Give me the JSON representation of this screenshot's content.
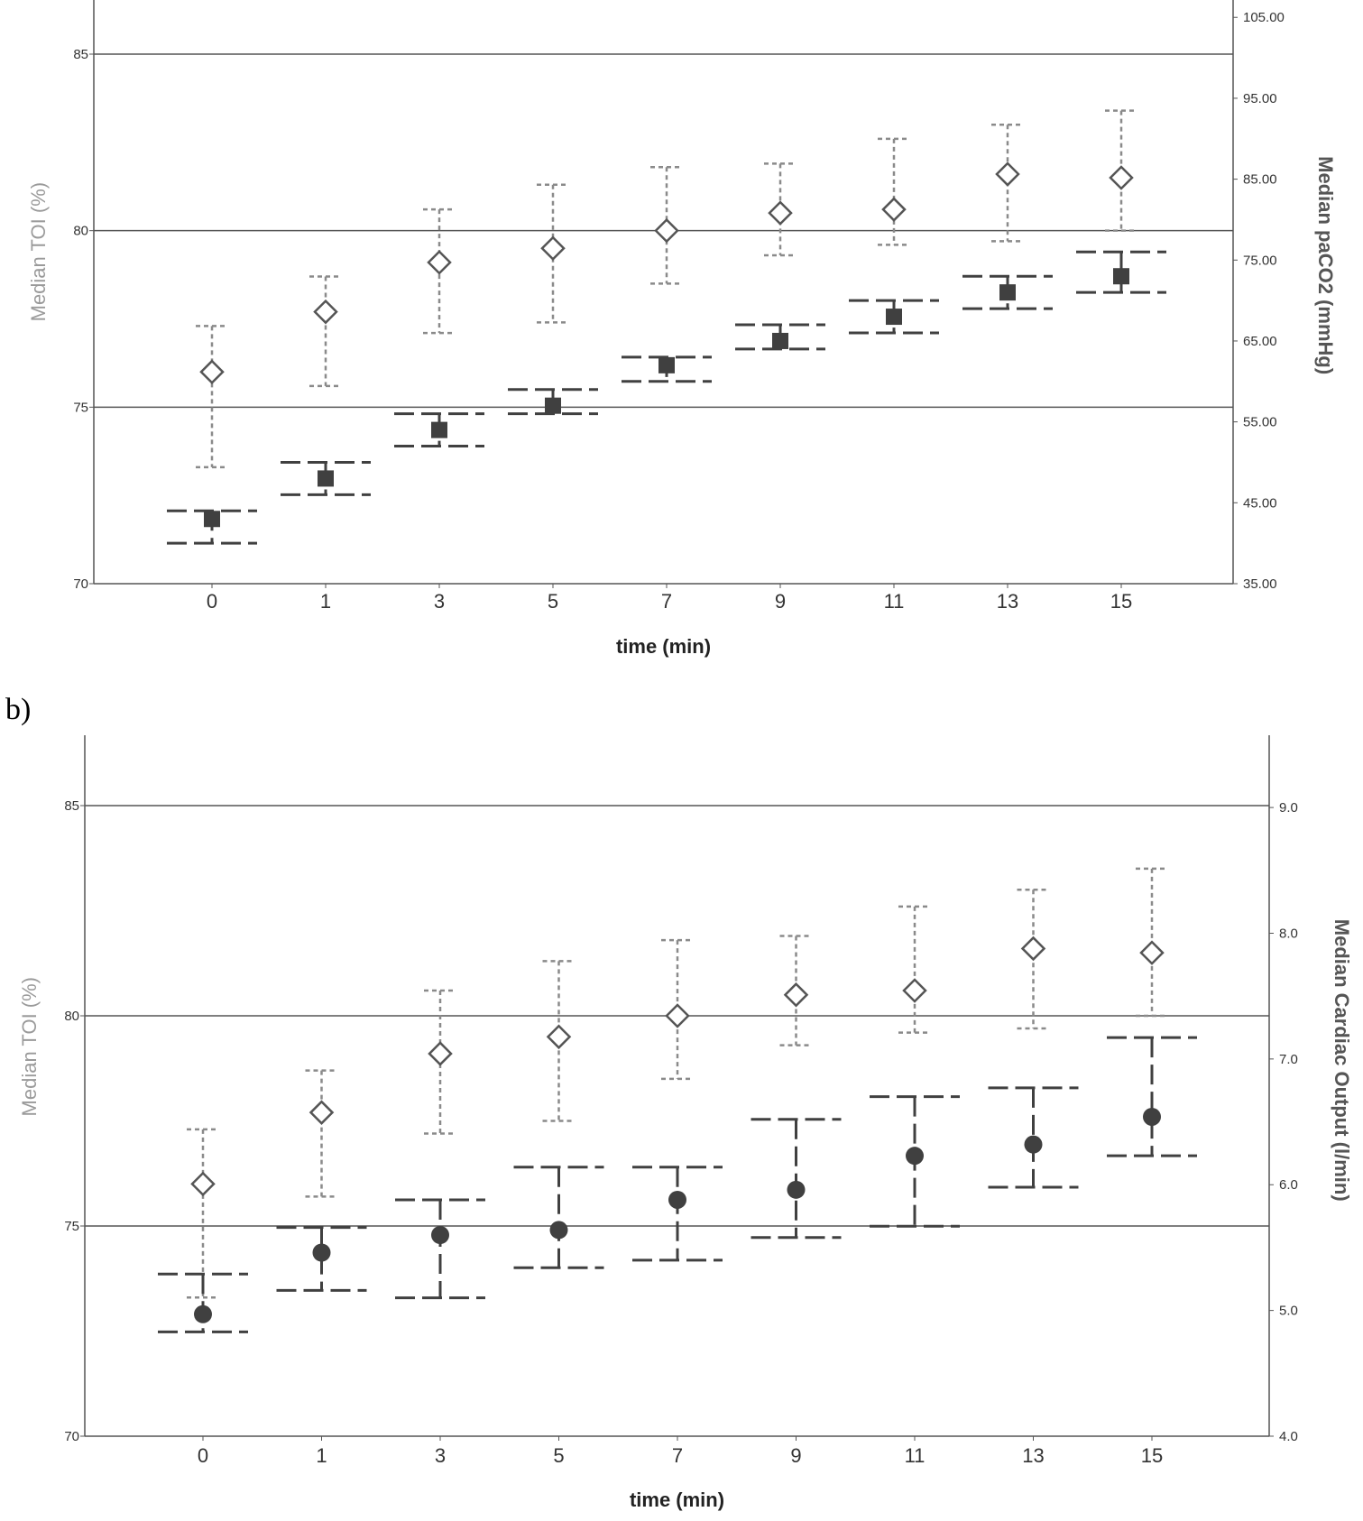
{
  "panel_labels": {
    "b": "b)"
  },
  "chart_data": [
    {
      "type": "scatter",
      "panel": "a",
      "title": "",
      "xlabel": "time (min)",
      "ylabel_left": "Median TOI (%)",
      "ylabel_right": "Median paCO2 (mmHg)",
      "categories": [
        "0",
        "1",
        "3",
        "5",
        "7",
        "9",
        "11",
        "13",
        "15"
      ],
      "y_left_ticks": [
        "70",
        "75",
        "80",
        "85"
      ],
      "y_left_range": [
        70,
        86.5
      ],
      "y_right_ticks": [
        "35.00",
        "45.00",
        "55.00",
        "65.00",
        "75.00",
        "85.00",
        "95.00",
        "105.00"
      ],
      "y_right_range": [
        35,
        107
      ],
      "gridlines_left": [
        75,
        80,
        85
      ],
      "colors": {
        "toi": "#8a8a8a",
        "secondary": "#404040"
      },
      "series": [
        {
          "axis": "left",
          "marker": "diamond",
          "median": [
            76.0,
            77.7,
            79.1,
            79.5,
            80.0,
            80.5,
            80.6,
            81.6,
            81.5
          ],
          "lower": [
            73.3,
            75.6,
            77.1,
            77.4,
            78.5,
            79.3,
            79.6,
            79.7,
            80.0
          ],
          "upper": [
            77.3,
            78.7,
            80.6,
            81.3,
            81.8,
            81.9,
            82.6,
            83.0,
            83.4
          ]
        },
        {
          "axis": "right",
          "marker": "square",
          "median": [
            43.0,
            48.0,
            54.0,
            57.0,
            62.0,
            65.0,
            68.0,
            71.0,
            73.0
          ],
          "lower": [
            40.0,
            46.0,
            52.0,
            56.0,
            60.0,
            64.0,
            66.0,
            69.0,
            71.0
          ],
          "upper": [
            44.0,
            50.0,
            56.0,
            59.0,
            63.0,
            67.0,
            70.0,
            73.0,
            76.0
          ]
        }
      ]
    },
    {
      "type": "scatter",
      "panel": "b",
      "title": "",
      "xlabel": "time (min)",
      "ylabel_left": "Median TOI (%)",
      "ylabel_right": "Median Cardiac Output (l/min)",
      "categories": [
        "0",
        "1",
        "3",
        "5",
        "7",
        "9",
        "11",
        "13",
        "15"
      ],
      "y_left_ticks": [
        "70",
        "75",
        "80",
        "85"
      ],
      "y_left_range": [
        70,
        86.6
      ],
      "y_right_ticks": [
        "4.0",
        "5.0",
        "6.0",
        "7.0",
        "8.0",
        "9.0"
      ],
      "y_right_range": [
        4.0,
        9.55
      ],
      "gridlines_left": [
        75,
        80,
        85
      ],
      "colors": {
        "toi": "#8a8a8a",
        "secondary": "#404040"
      },
      "series": [
        {
          "axis": "left",
          "marker": "diamond",
          "median": [
            76.0,
            77.7,
            79.1,
            79.5,
            80.0,
            80.5,
            80.6,
            81.6,
            81.5
          ],
          "lower": [
            73.3,
            75.7,
            77.2,
            77.5,
            78.5,
            79.3,
            79.6,
            79.7,
            80.0
          ],
          "upper": [
            77.3,
            78.7,
            80.6,
            81.3,
            81.8,
            81.9,
            82.6,
            83.0,
            83.5
          ]
        },
        {
          "axis": "right",
          "marker": "circle",
          "median": [
            4.97,
            5.46,
            5.6,
            5.64,
            5.88,
            5.96,
            6.23,
            6.32,
            6.54
          ],
          "lower": [
            4.83,
            5.16,
            5.1,
            5.34,
            5.4,
            5.58,
            5.67,
            5.98,
            6.23
          ],
          "upper": [
            5.29,
            5.66,
            5.88,
            6.14,
            6.14,
            6.52,
            6.7,
            6.77,
            7.17
          ]
        }
      ]
    }
  ]
}
